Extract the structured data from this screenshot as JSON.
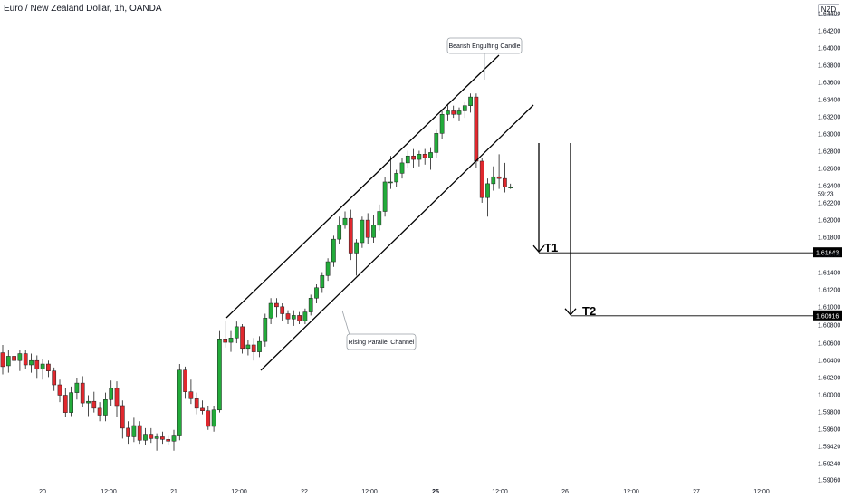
{
  "header": {
    "symbol_title": "Euro / New Zealand Dollar, 1h, OANDA",
    "currency": "NZD"
  },
  "colors": {
    "bull": "#22ab3a",
    "bear": "#e0282e",
    "wick": "#1e1e1e",
    "line": "#000000",
    "tag_bg": "#000000"
  },
  "chart_data": {
    "type": "candlestick",
    "y_ticks": [
      "1.64400",
      "1.64200",
      "1.64000",
      "1.63800",
      "1.63600",
      "1.63400",
      "1.63200",
      "1.63000",
      "1.62800",
      "1.62600",
      "1.62400",
      "1.62200",
      "1.62000",
      "1.61800",
      "1.61600",
      "1.61400",
      "1.61200",
      "1.61000",
      "1.60800",
      "1.60600",
      "1.60400",
      "1.60200",
      "1.60000",
      "1.59800",
      "1.59600",
      "1.59420",
      "1.59240",
      "1.59060"
    ],
    "y_tick_values": [
      1.644,
      1.642,
      1.64,
      1.638,
      1.636,
      1.634,
      1.632,
      1.63,
      1.628,
      1.626,
      1.624,
      1.622,
      1.62,
      1.618,
      1.616,
      1.614,
      1.612,
      1.61,
      1.608,
      1.606,
      1.604,
      1.602,
      1.6,
      1.598,
      1.596,
      1.5942,
      1.5924,
      1.5906
    ],
    "x_ticks": [
      "20",
      "12:00",
      "21",
      "12:00",
      "22",
      "12:00",
      "25",
      "12:00",
      "26",
      "12:00",
      "27",
      "12:00"
    ],
    "x_tick_bold": [
      false,
      false,
      false,
      false,
      false,
      false,
      true,
      false,
      false,
      false,
      false,
      false
    ],
    "countdown_label": "59:23",
    "candles": [
      {
        "o": 1.6049,
        "h": 1.6058,
        "l": 1.6024,
        "c": 1.6033
      },
      {
        "o": 1.6034,
        "h": 1.6052,
        "l": 1.6026,
        "c": 1.6045
      },
      {
        "o": 1.6045,
        "h": 1.6055,
        "l": 1.6034,
        "c": 1.604
      },
      {
        "o": 1.604,
        "h": 1.6052,
        "l": 1.6028,
        "c": 1.6048
      },
      {
        "o": 1.6048,
        "h": 1.6052,
        "l": 1.603,
        "c": 1.6035
      },
      {
        "o": 1.6035,
        "h": 1.6048,
        "l": 1.6026,
        "c": 1.604
      },
      {
        "o": 1.604,
        "h": 1.6046,
        "l": 1.6019,
        "c": 1.603
      },
      {
        "o": 1.603,
        "h": 1.6042,
        "l": 1.6018,
        "c": 1.6036
      },
      {
        "o": 1.6036,
        "h": 1.604,
        "l": 1.6021,
        "c": 1.6028
      },
      {
        "o": 1.6028,
        "h": 1.6032,
        "l": 1.6005,
        "c": 1.6012
      },
      {
        "o": 1.6012,
        "h": 1.6018,
        "l": 1.5992,
        "c": 1.6
      },
      {
        "o": 1.6,
        "h": 1.6008,
        "l": 1.5975,
        "c": 1.598
      },
      {
        "o": 1.598,
        "h": 1.601,
        "l": 1.5976,
        "c": 1.6003
      },
      {
        "o": 1.6003,
        "h": 1.602,
        "l": 1.5995,
        "c": 1.6014
      },
      {
        "o": 1.6014,
        "h": 1.6022,
        "l": 1.5986,
        "c": 1.5991
      },
      {
        "o": 1.5991,
        "h": 1.6,
        "l": 1.5976,
        "c": 1.5993
      },
      {
        "o": 1.5993,
        "h": 1.6004,
        "l": 1.598,
        "c": 1.5985
      },
      {
        "o": 1.5985,
        "h": 1.5992,
        "l": 1.597,
        "c": 1.5977
      },
      {
        "o": 1.5977,
        "h": 1.6003,
        "l": 1.597,
        "c": 1.5995
      },
      {
        "o": 1.5995,
        "h": 1.6017,
        "l": 1.5988,
        "c": 1.6008
      },
      {
        "o": 1.6008,
        "h": 1.6016,
        "l": 1.5975,
        "c": 1.5988
      },
      {
        "o": 1.5988,
        "h": 1.5994,
        "l": 1.595,
        "c": 1.5962
      },
      {
        "o": 1.5962,
        "h": 1.597,
        "l": 1.5944,
        "c": 1.5952
      },
      {
        "o": 1.5952,
        "h": 1.5974,
        "l": 1.5946,
        "c": 1.5965
      },
      {
        "o": 1.5965,
        "h": 1.597,
        "l": 1.5944,
        "c": 1.5948
      },
      {
        "o": 1.5948,
        "h": 1.5962,
        "l": 1.5942,
        "c": 1.5955
      },
      {
        "o": 1.5955,
        "h": 1.5962,
        "l": 1.5945,
        "c": 1.595
      },
      {
        "o": 1.595,
        "h": 1.5956,
        "l": 1.5936,
        "c": 1.5952
      },
      {
        "o": 1.5952,
        "h": 1.5958,
        "l": 1.5944,
        "c": 1.5949
      },
      {
        "o": 1.5949,
        "h": 1.5954,
        "l": 1.5942,
        "c": 1.5947
      },
      {
        "o": 1.5947,
        "h": 1.596,
        "l": 1.5936,
        "c": 1.5954
      },
      {
        "o": 1.5954,
        "h": 1.6036,
        "l": 1.5948,
        "c": 1.6029
      },
      {
        "o": 1.6029,
        "h": 1.6033,
        "l": 1.5996,
        "c": 1.6004
      },
      {
        "o": 1.6004,
        "h": 1.6018,
        "l": 1.599,
        "c": 1.5996
      },
      {
        "o": 1.5996,
        "h": 1.6003,
        "l": 1.5978,
        "c": 1.5985
      },
      {
        "o": 1.5985,
        "h": 1.5994,
        "l": 1.5978,
        "c": 1.5982
      },
      {
        "o": 1.5982,
        "h": 1.5988,
        "l": 1.596,
        "c": 1.5964
      },
      {
        "o": 1.5964,
        "h": 1.5988,
        "l": 1.5958,
        "c": 1.5983
      },
      {
        "o": 1.5983,
        "h": 1.6074,
        "l": 1.598,
        "c": 1.6065
      },
      {
        "o": 1.6065,
        "h": 1.6086,
        "l": 1.6055,
        "c": 1.6061
      },
      {
        "o": 1.6061,
        "h": 1.6074,
        "l": 1.605,
        "c": 1.6066
      },
      {
        "o": 1.6066,
        "h": 1.6085,
        "l": 1.606,
        "c": 1.6079
      },
      {
        "o": 1.6079,
        "h": 1.6082,
        "l": 1.6048,
        "c": 1.6054
      },
      {
        "o": 1.6054,
        "h": 1.6064,
        "l": 1.6046,
        "c": 1.6058
      },
      {
        "o": 1.6058,
        "h": 1.6066,
        "l": 1.604,
        "c": 1.605
      },
      {
        "o": 1.605,
        "h": 1.6068,
        "l": 1.6044,
        "c": 1.6062
      },
      {
        "o": 1.6062,
        "h": 1.6094,
        "l": 1.6056,
        "c": 1.6089
      },
      {
        "o": 1.6089,
        "h": 1.6112,
        "l": 1.6082,
        "c": 1.6106
      },
      {
        "o": 1.6106,
        "h": 1.6112,
        "l": 1.609,
        "c": 1.6102
      },
      {
        "o": 1.6102,
        "h": 1.6106,
        "l": 1.6086,
        "c": 1.6094
      },
      {
        "o": 1.6094,
        "h": 1.6098,
        "l": 1.6082,
        "c": 1.6088
      },
      {
        "o": 1.6088,
        "h": 1.6098,
        "l": 1.608,
        "c": 1.6092
      },
      {
        "o": 1.6092,
        "h": 1.6096,
        "l": 1.6082,
        "c": 1.6086
      },
      {
        "o": 1.6086,
        "h": 1.61,
        "l": 1.6082,
        "c": 1.6096
      },
      {
        "o": 1.6096,
        "h": 1.6116,
        "l": 1.6092,
        "c": 1.6112
      },
      {
        "o": 1.6112,
        "h": 1.6128,
        "l": 1.6106,
        "c": 1.6124
      },
      {
        "o": 1.6124,
        "h": 1.6142,
        "l": 1.6118,
        "c": 1.6138
      },
      {
        "o": 1.6138,
        "h": 1.6158,
        "l": 1.6132,
        "c": 1.6154
      },
      {
        "o": 1.6154,
        "h": 1.6184,
        "l": 1.6148,
        "c": 1.618
      },
      {
        "o": 1.618,
        "h": 1.6206,
        "l": 1.6174,
        "c": 1.6196
      },
      {
        "o": 1.6196,
        "h": 1.6212,
        "l": 1.6192,
        "c": 1.6204
      },
      {
        "o": 1.6204,
        "h": 1.6214,
        "l": 1.6156,
        "c": 1.6164
      },
      {
        "o": 1.6164,
        "h": 1.618,
        "l": 1.6138,
        "c": 1.6176
      },
      {
        "o": 1.6176,
        "h": 1.6206,
        "l": 1.617,
        "c": 1.6202
      },
      {
        "o": 1.6202,
        "h": 1.621,
        "l": 1.6174,
        "c": 1.6182
      },
      {
        "o": 1.6182,
        "h": 1.6208,
        "l": 1.6176,
        "c": 1.6196
      },
      {
        "o": 1.6196,
        "h": 1.622,
        "l": 1.619,
        "c": 1.6212
      },
      {
        "o": 1.6212,
        "h": 1.6252,
        "l": 1.6206,
        "c": 1.6246
      },
      {
        "o": 1.6246,
        "h": 1.6276,
        "l": 1.6238,
        "c": 1.6246
      },
      {
        "o": 1.6246,
        "h": 1.626,
        "l": 1.624,
        "c": 1.6256
      },
      {
        "o": 1.6256,
        "h": 1.6274,
        "l": 1.625,
        "c": 1.6268
      },
      {
        "o": 1.6268,
        "h": 1.6282,
        "l": 1.6262,
        "c": 1.6276
      },
      {
        "o": 1.6276,
        "h": 1.6284,
        "l": 1.6262,
        "c": 1.6272
      },
      {
        "o": 1.6272,
        "h": 1.6282,
        "l": 1.6264,
        "c": 1.6278
      },
      {
        "o": 1.6278,
        "h": 1.6284,
        "l": 1.6266,
        "c": 1.6274
      },
      {
        "o": 1.6274,
        "h": 1.6286,
        "l": 1.626,
        "c": 1.628
      },
      {
        "o": 1.628,
        "h": 1.6306,
        "l": 1.6274,
        "c": 1.6302
      },
      {
        "o": 1.6302,
        "h": 1.633,
        "l": 1.6296,
        "c": 1.6324
      },
      {
        "o": 1.6324,
        "h": 1.6336,
        "l": 1.6316,
        "c": 1.6328
      },
      {
        "o": 1.6328,
        "h": 1.6334,
        "l": 1.632,
        "c": 1.6324
      },
      {
        "o": 1.6324,
        "h": 1.6332,
        "l": 1.6316,
        "c": 1.6328
      },
      {
        "o": 1.6328,
        "h": 1.6338,
        "l": 1.632,
        "c": 1.6334
      },
      {
        "o": 1.6334,
        "h": 1.6348,
        "l": 1.6326,
        "c": 1.6344
      },
      {
        "o": 1.6344,
        "h": 1.6348,
        "l": 1.6262,
        "c": 1.627
      },
      {
        "o": 1.627,
        "h": 1.6274,
        "l": 1.6222,
        "c": 1.6228
      },
      {
        "o": 1.6228,
        "h": 1.625,
        "l": 1.6206,
        "c": 1.6244
      },
      {
        "o": 1.6244,
        "h": 1.6264,
        "l": 1.6236,
        "c": 1.6252
      },
      {
        "o": 1.6252,
        "h": 1.6278,
        "l": 1.6238,
        "c": 1.625
      },
      {
        "o": 1.625,
        "h": 1.6268,
        "l": 1.6234,
        "c": 1.624
      },
      {
        "o": 1.624,
        "h": 1.6244,
        "l": 1.6238,
        "c": 1.624
      }
    ],
    "price_tags": [
      {
        "label": "1.61643",
        "value": 1.61643
      },
      {
        "label": "1.60916",
        "value": 1.60916
      }
    ],
    "annotations": {
      "bearish_label": "Bearish Engulfing Candle",
      "channel_label": "Rising Parallel Channel",
      "targets": [
        {
          "label": "T1",
          "value": 1.61643
        },
        {
          "label": "T2",
          "value": 1.60916
        }
      ]
    }
  }
}
